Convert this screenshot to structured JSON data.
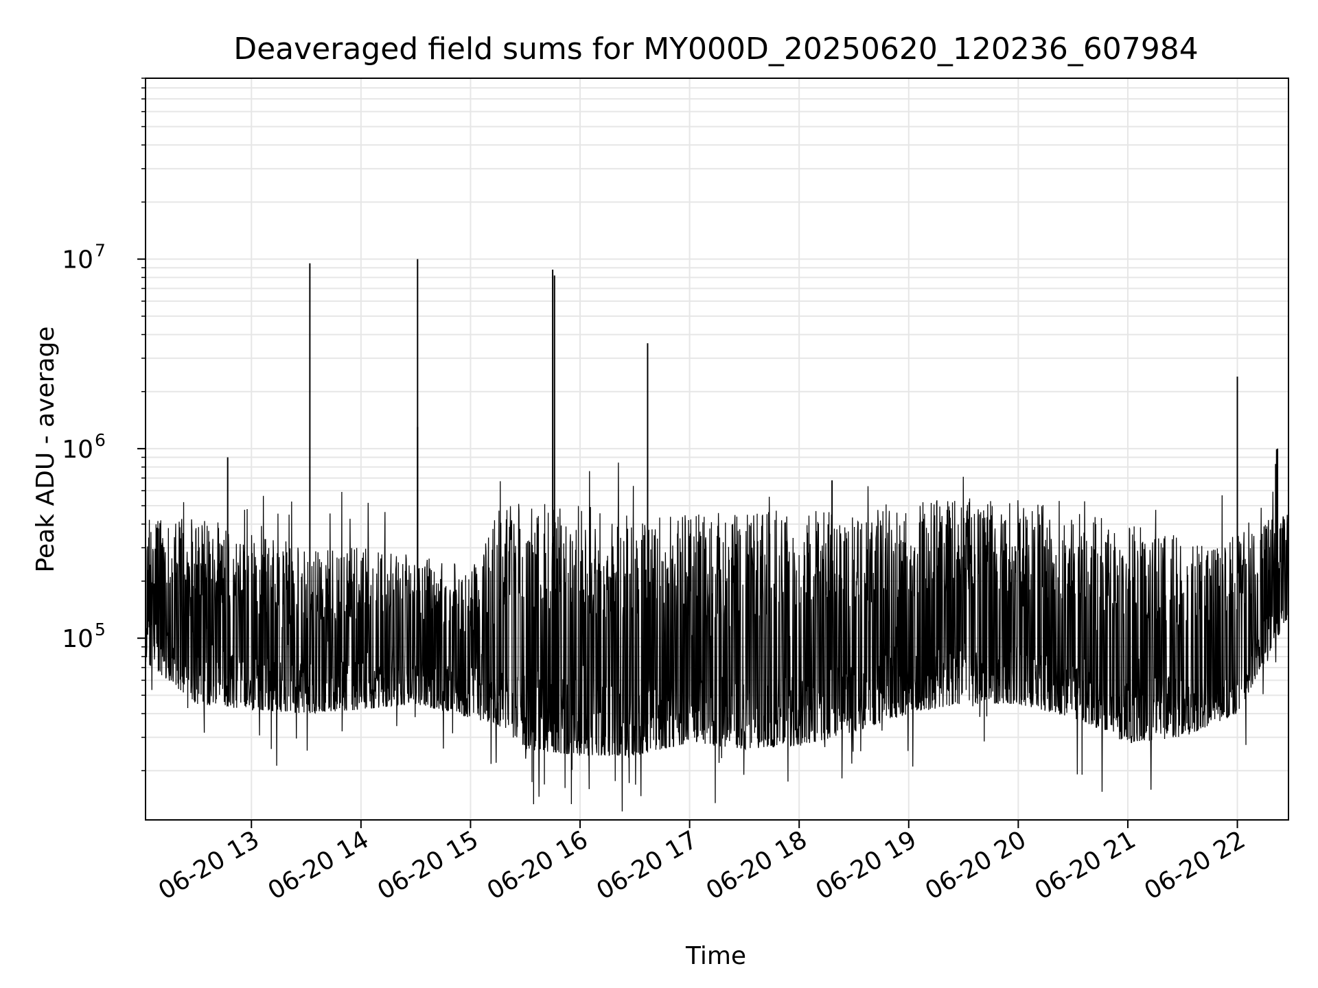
{
  "chart_data": {
    "type": "line",
    "title": "Deaveraged field sums for MY000D_20250620_120236_607984",
    "xlabel": "Time",
    "ylabel": "Peak ADU - average",
    "yscale": "log",
    "grid": true,
    "grid_minor": true,
    "line_color": "#000000",
    "grid_color": "#e6e6e6",
    "xlim": [
      "2025-06-20 12:02",
      "2025-06-20 22:28"
    ],
    "ylim": [
      11000,
      90000000
    ],
    "x_ticks": [
      {
        "value": "2025-06-20 13:00",
        "label": "06-20 13"
      },
      {
        "value": "2025-06-20 14:00",
        "label": "06-20 14"
      },
      {
        "value": "2025-06-20 15:00",
        "label": "06-20 15"
      },
      {
        "value": "2025-06-20 16:00",
        "label": "06-20 16"
      },
      {
        "value": "2025-06-20 17:00",
        "label": "06-20 17"
      },
      {
        "value": "2025-06-20 18:00",
        "label": "06-20 18"
      },
      {
        "value": "2025-06-20 19:00",
        "label": "06-20 19"
      },
      {
        "value": "2025-06-20 20:00",
        "label": "06-20 20"
      },
      {
        "value": "2025-06-20 21:00",
        "label": "06-20 21"
      },
      {
        "value": "2025-06-20 22:00",
        "label": "06-20 22"
      }
    ],
    "y_ticks": [
      {
        "value": 100000,
        "base": "10",
        "exp": "5"
      },
      {
        "value": 1000000,
        "base": "10",
        "exp": "6"
      },
      {
        "value": 10000000,
        "base": "10",
        "exp": "7"
      }
    ],
    "baseline_envelope": [
      {
        "time": "2025-06-20 12:02",
        "low": 75000,
        "high": 420000
      },
      {
        "time": "2025-06-20 12:30",
        "low": 45000,
        "high": 450000
      },
      {
        "time": "2025-06-20 13:00",
        "low": 42000,
        "high": 350000
      },
      {
        "time": "2025-06-20 13:30",
        "low": 40000,
        "high": 300000
      },
      {
        "time": "2025-06-20 14:00",
        "low": 42000,
        "high": 300000
      },
      {
        "time": "2025-06-20 14:30",
        "low": 45000,
        "high": 280000
      },
      {
        "time": "2025-06-20 15:00",
        "low": 38000,
        "high": 250000
      },
      {
        "time": "2025-06-20 15:15",
        "low": 35000,
        "high": 500000
      },
      {
        "time": "2025-06-20 15:30",
        "low": 26000,
        "high": 520000
      },
      {
        "time": "2025-06-20 16:00",
        "low": 24000,
        "high": 500000
      },
      {
        "time": "2025-06-20 16:30",
        "low": 24000,
        "high": 460000
      },
      {
        "time": "2025-06-20 17:00",
        "low": 28000,
        "high": 450000
      },
      {
        "time": "2025-06-20 17:30",
        "low": 26000,
        "high": 470000
      },
      {
        "time": "2025-06-20 18:00",
        "low": 27000,
        "high": 470000
      },
      {
        "time": "2025-06-20 18:30",
        "low": 32000,
        "high": 500000
      },
      {
        "time": "2025-06-20 19:00",
        "low": 40000,
        "high": 520000
      },
      {
        "time": "2025-06-20 19:30",
        "low": 45000,
        "high": 550000
      },
      {
        "time": "2025-06-20 20:00",
        "low": 45000,
        "high": 530000
      },
      {
        "time": "2025-06-20 20:30",
        "low": 38000,
        "high": 480000
      },
      {
        "time": "2025-06-20 21:00",
        "low": 28000,
        "high": 400000
      },
      {
        "time": "2025-06-20 21:30",
        "low": 30000,
        "high": 350000
      },
      {
        "time": "2025-06-20 22:00",
        "low": 40000,
        "high": 350000
      },
      {
        "time": "2025-06-20 22:28",
        "low": 130000,
        "high": 500000
      }
    ],
    "spikes": [
      {
        "time": "2025-06-20 12:47",
        "value": 900000
      },
      {
        "time": "2025-06-20 13:32",
        "value": 9500000
      },
      {
        "time": "2025-06-20 14:31",
        "value": 10000000
      },
      {
        "time": "2025-06-20 14:31",
        "value": 1300000
      },
      {
        "time": "2025-06-20 15:45",
        "value": 8800000
      },
      {
        "time": "2025-06-20 15:46",
        "value": 8200000
      },
      {
        "time": "2025-06-20 16:37",
        "value": 3600000
      },
      {
        "time": "2025-06-20 18:18",
        "value": 680000
      },
      {
        "time": "2025-06-20 22:00",
        "value": 2400000
      },
      {
        "time": "2025-06-20 22:22",
        "value": 1000000
      },
      {
        "time": "2025-06-20 22:21",
        "value": 830000
      }
    ]
  }
}
